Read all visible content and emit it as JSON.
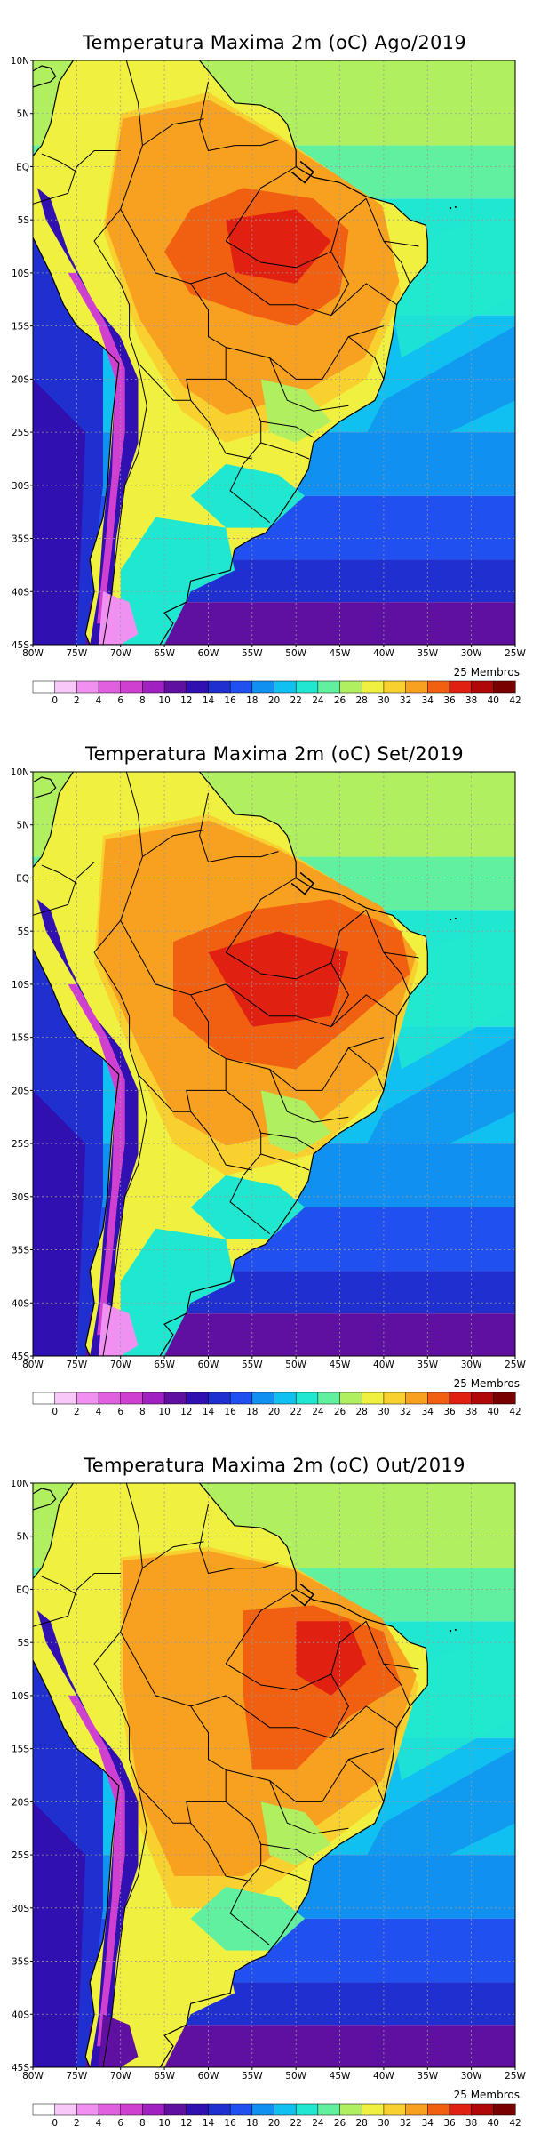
{
  "maps": [
    {
      "title": "Temperatura Maxima 2m (oC) Ago/2019",
      "month": "Ago/2019"
    },
    {
      "title": "Temperatura Maxima 2m (oC) Set/2019",
      "month": "Set/2019"
    },
    {
      "title": "Temperatura Maxima 2m (oC) Out/2019",
      "month": "Out/2019"
    }
  ],
  "members_label": "25 Membros",
  "lon_labels": [
    "80W",
    "75W",
    "70W",
    "65W",
    "60W",
    "55W",
    "50W",
    "45W",
    "40W",
    "35W",
    "30W",
    "25W"
  ],
  "lat_labels": [
    "10N",
    "5N",
    "EQ",
    "5S",
    "10S",
    "15S",
    "20S",
    "25S",
    "30S",
    "35S",
    "40S",
    "45S"
  ],
  "colorbar": {
    "labels": [
      "0",
      "2",
      "4",
      "6",
      "8",
      "10",
      "12",
      "14",
      "16",
      "18",
      "20",
      "22",
      "24",
      "26",
      "28",
      "30",
      "32",
      "34",
      "36",
      "38",
      "40",
      "42"
    ],
    "colors": [
      "#ffffff",
      "#f8c8f8",
      "#f090f0",
      "#e060e0",
      "#d040d0",
      "#a020c0",
      "#6010a0",
      "#3010b0",
      "#2030d0",
      "#2050f0",
      "#1090f0",
      "#10c0f0",
      "#20e8d0",
      "#60f0a0",
      "#b0f060",
      "#f0f040",
      "#f8d030",
      "#f8a020",
      "#f06010",
      "#e02010",
      "#b00808",
      "#780000"
    ]
  },
  "chart_data": {
    "type": "heatmap",
    "variable": "Temperatura Maxima 2m (oC)",
    "members": "25 Membros",
    "lon_range": [
      "80W",
      "25W"
    ],
    "lat_range": [
      "45S",
      "10N"
    ],
    "grid": "dotted",
    "color_levels": [
      0,
      2,
      4,
      6,
      8,
      10,
      12,
      14,
      16,
      18,
      20,
      22,
      24,
      26,
      28,
      30,
      32,
      34,
      36,
      38,
      40,
      42
    ],
    "panels": [
      "Ago/2019",
      "Set/2019",
      "Out/2019"
    ]
  }
}
